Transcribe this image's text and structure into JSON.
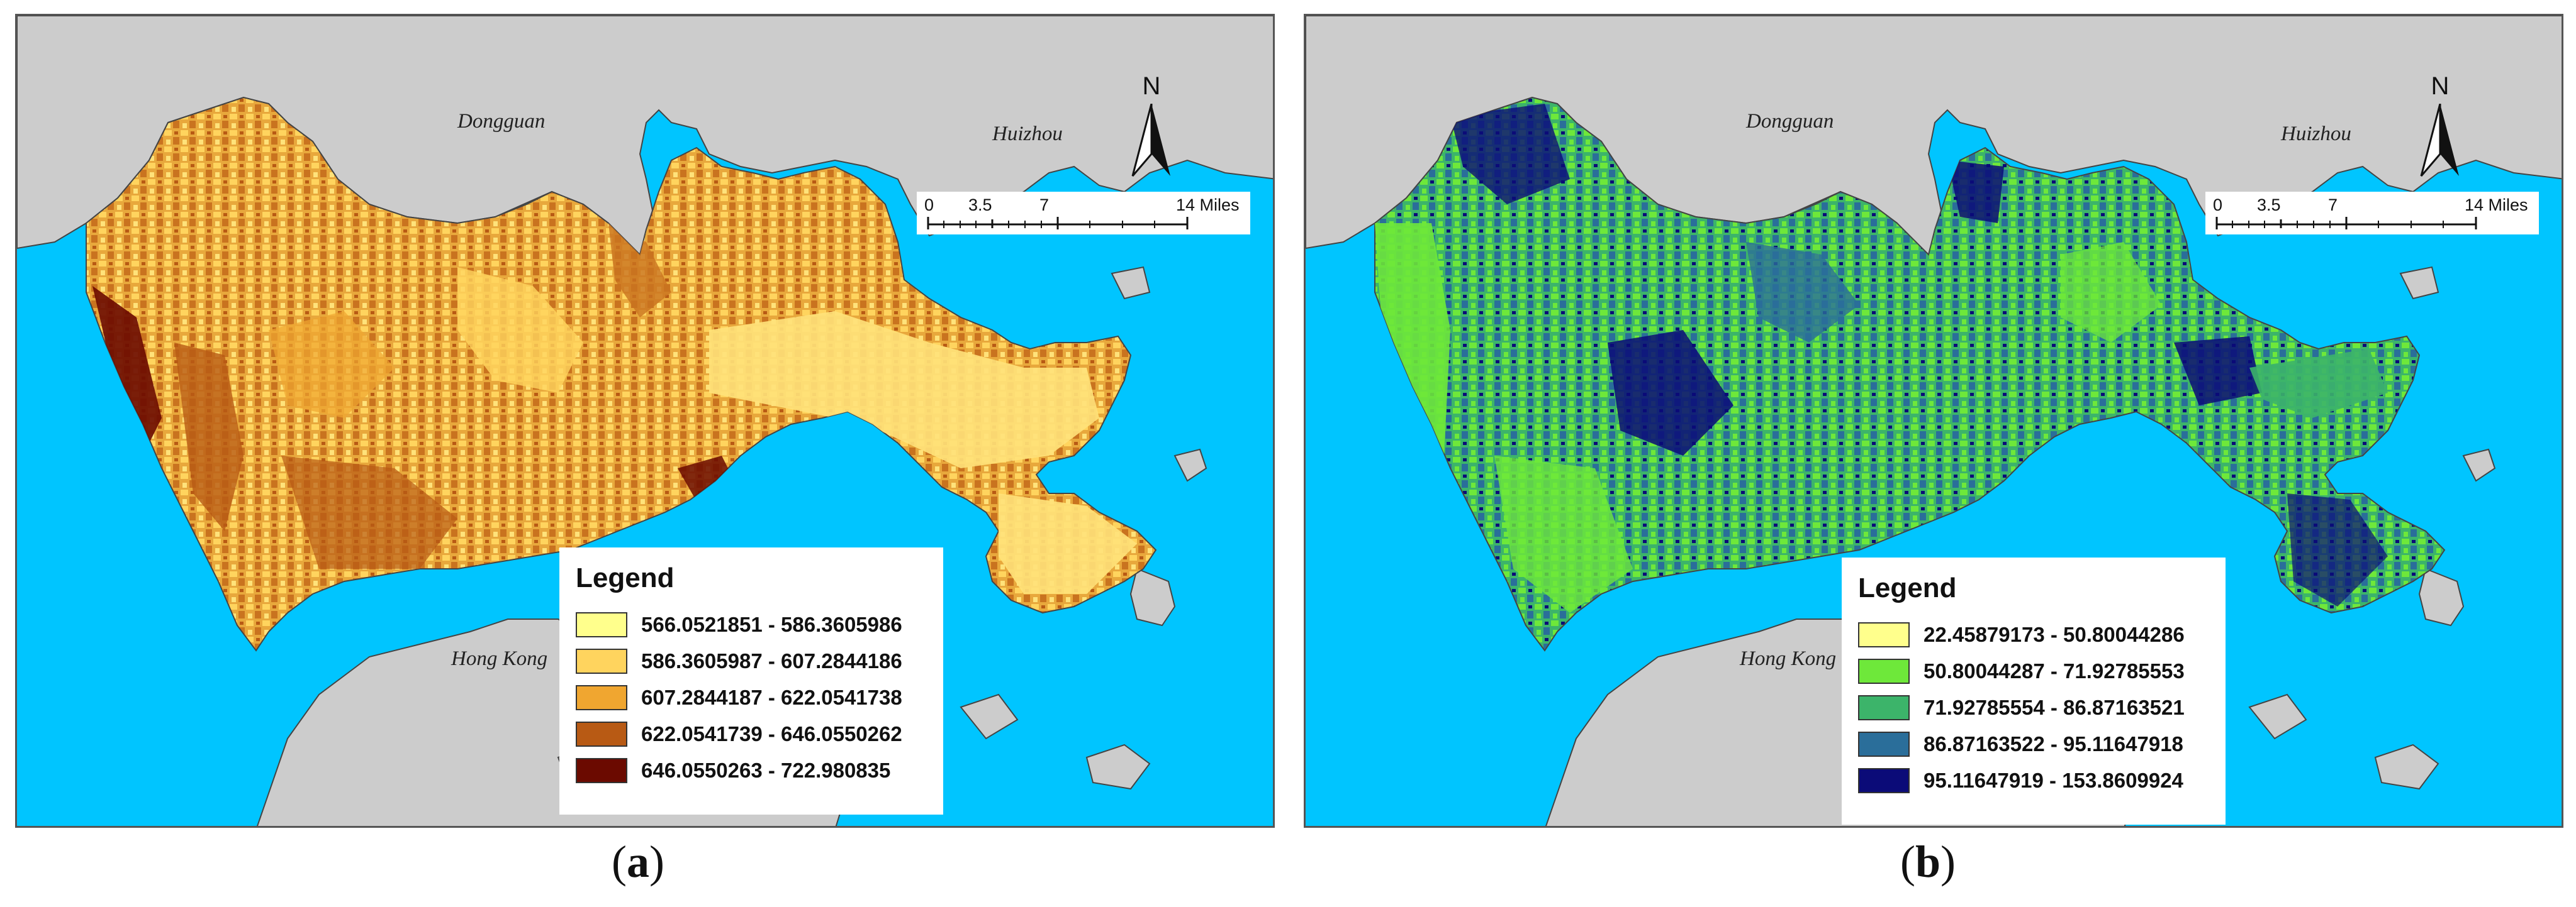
{
  "panels": [
    {
      "id": "a",
      "caption_open": "(",
      "caption_letter": "a",
      "caption_close": ")",
      "labels": {
        "northwest": "Dongguan",
        "northeast": "Huizhou",
        "south": "Hong Kong"
      },
      "north_arrow": "N",
      "scale": {
        "ticks": [
          "0",
          "3.5",
          "7",
          "14 Miles"
        ]
      },
      "legend": {
        "title": "Legend",
        "classes": [
          {
            "range": "566.0521851 - 586.3605986",
            "color": "#ffff8c"
          },
          {
            "range": "586.3605987 - 607.2844186",
            "color": "#ffd45e"
          },
          {
            "range": "607.2844187 - 622.0541738",
            "color": "#f0a630"
          },
          {
            "range": "622.0541739 - 646.0550262",
            "color": "#b85a14"
          },
          {
            "range": "646.0550263 - 722.980835",
            "color": "#6b0a00"
          }
        ]
      }
    },
    {
      "id": "b",
      "caption_open": "(",
      "caption_letter": "b",
      "caption_close": ")",
      "labels": {
        "northwest": "Dongguan",
        "northeast": "Huizhou",
        "south": "Hong Kong"
      },
      "north_arrow": "N",
      "scale": {
        "ticks": [
          "0",
          "3.5",
          "7",
          "14 Miles"
        ]
      },
      "legend": {
        "title": "Legend",
        "classes": [
          {
            "range": "22.45879173 - 50.80044286",
            "color": "#ffff8c"
          },
          {
            "range": "50.80044287 - 71.92785553",
            "color": "#6ee83a"
          },
          {
            "range": "71.92785554 - 86.87163521",
            "color": "#3cb46a"
          },
          {
            "range": "86.87163522 - 95.11647918",
            "color": "#2a6e9a"
          },
          {
            "range": "95.11647919 - 153.8609924",
            "color": "#0b0b78"
          }
        ]
      }
    }
  ],
  "colors": {
    "sea": "#00c5ff",
    "land": "#cccccc",
    "coast": "#444444"
  }
}
